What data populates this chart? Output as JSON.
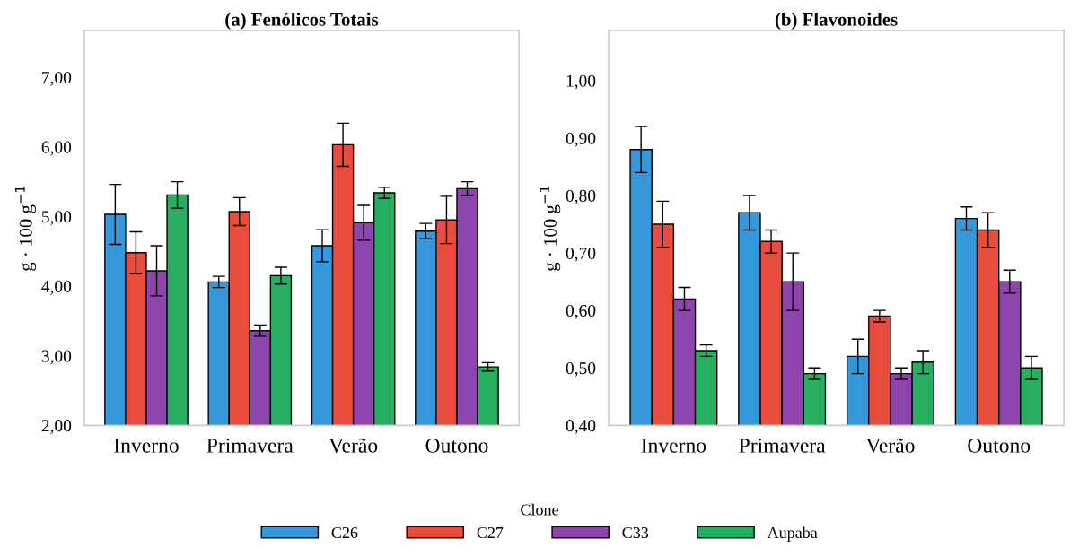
{
  "chart_data": [
    {
      "type": "bar",
      "title": "(a) Fenólicos Totais",
      "ylabel": "g · 100 g$^{−1}$",
      "categories": [
        "Inverno",
        "Primavera",
        "Verão",
        "Outono"
      ],
      "series": [
        {
          "color": "#3498db",
          "values": [
            5.03,
            4.06,
            4.58,
            4.79
          ],
          "errors": [
            0.43,
            0.08,
            0.23,
            0.11
          ]
        },
        {
          "color": "#e74c3c",
          "values": [
            4.48,
            5.07,
            6.03,
            4.95
          ],
          "errors": [
            0.3,
            0.2,
            0.31,
            0.34
          ]
        },
        {
          "color": "#8e44ad",
          "values": [
            4.22,
            3.36,
            4.91,
            5.4
          ],
          "errors": [
            0.36,
            0.08,
            0.25,
            0.1
          ]
        },
        {
          "color": "#27ae60",
          "values": [
            5.31,
            4.15,
            5.34,
            2.84
          ],
          "errors": [
            0.19,
            0.12,
            0.08,
            0.06
          ]
        }
      ],
      "ylim": [
        2,
        7.67
      ],
      "yticks": [
        {
          "value": 2,
          "label": "2,00"
        },
        {
          "value": 3,
          "label": "3,00"
        },
        {
          "value": 4,
          "label": "4,00"
        },
        {
          "value": 5,
          "label": "5,00"
        },
        {
          "value": 6,
          "label": "6,00"
        },
        {
          "value": 7,
          "label": "7,00"
        }
      ],
      "grid": false
    },
    {
      "type": "bar",
      "title": "(b) Flavonoides",
      "ylabel": "g · 100 g$^{−1}$",
      "categories": [
        "Inverno",
        "Primavera",
        "Verão",
        "Outono"
      ],
      "series": [
        {
          "name": "C26",
          "color": "#3498db",
          "values": [
            0.88,
            0.77,
            0.52,
            0.76
          ],
          "errors": [
            0.04,
            0.03,
            0.03,
            0.02
          ]
        },
        {
          "name": "C27",
          "color": "#e74c3c",
          "values": [
            0.75,
            0.72,
            0.59,
            0.74
          ],
          "errors": [
            0.04,
            0.02,
            0.01,
            0.03
          ]
        },
        {
          "name": "C33",
          "color": "#8e44ad",
          "values": [
            0.62,
            0.65,
            0.49,
            0.65
          ],
          "errors": [
            0.02,
            0.05,
            0.01,
            0.02
          ]
        },
        {
          "name": "Aupaba",
          "color": "#27ae60",
          "values": [
            0.53,
            0.49,
            0.51,
            0.5
          ],
          "errors": [
            0.01,
            0.01,
            0.02,
            0.02
          ]
        }
      ],
      "ylim": [
        0.4,
        1.087
      ],
      "yticks": [
        {
          "value": 0.4,
          "label": "0,40"
        },
        {
          "value": 0.5,
          "label": "0,50"
        },
        {
          "value": 0.6,
          "label": "0,60"
        },
        {
          "value": 0.7,
          "label": "0,70"
        },
        {
          "value": 0.8,
          "label": "0,80"
        },
        {
          "value": 0.9,
          "label": "0,90"
        },
        {
          "value": 1.0,
          "label": "1,00"
        }
      ],
      "grid": false,
      "legend": "bottom",
      "legend_title": "Clone"
    }
  ]
}
